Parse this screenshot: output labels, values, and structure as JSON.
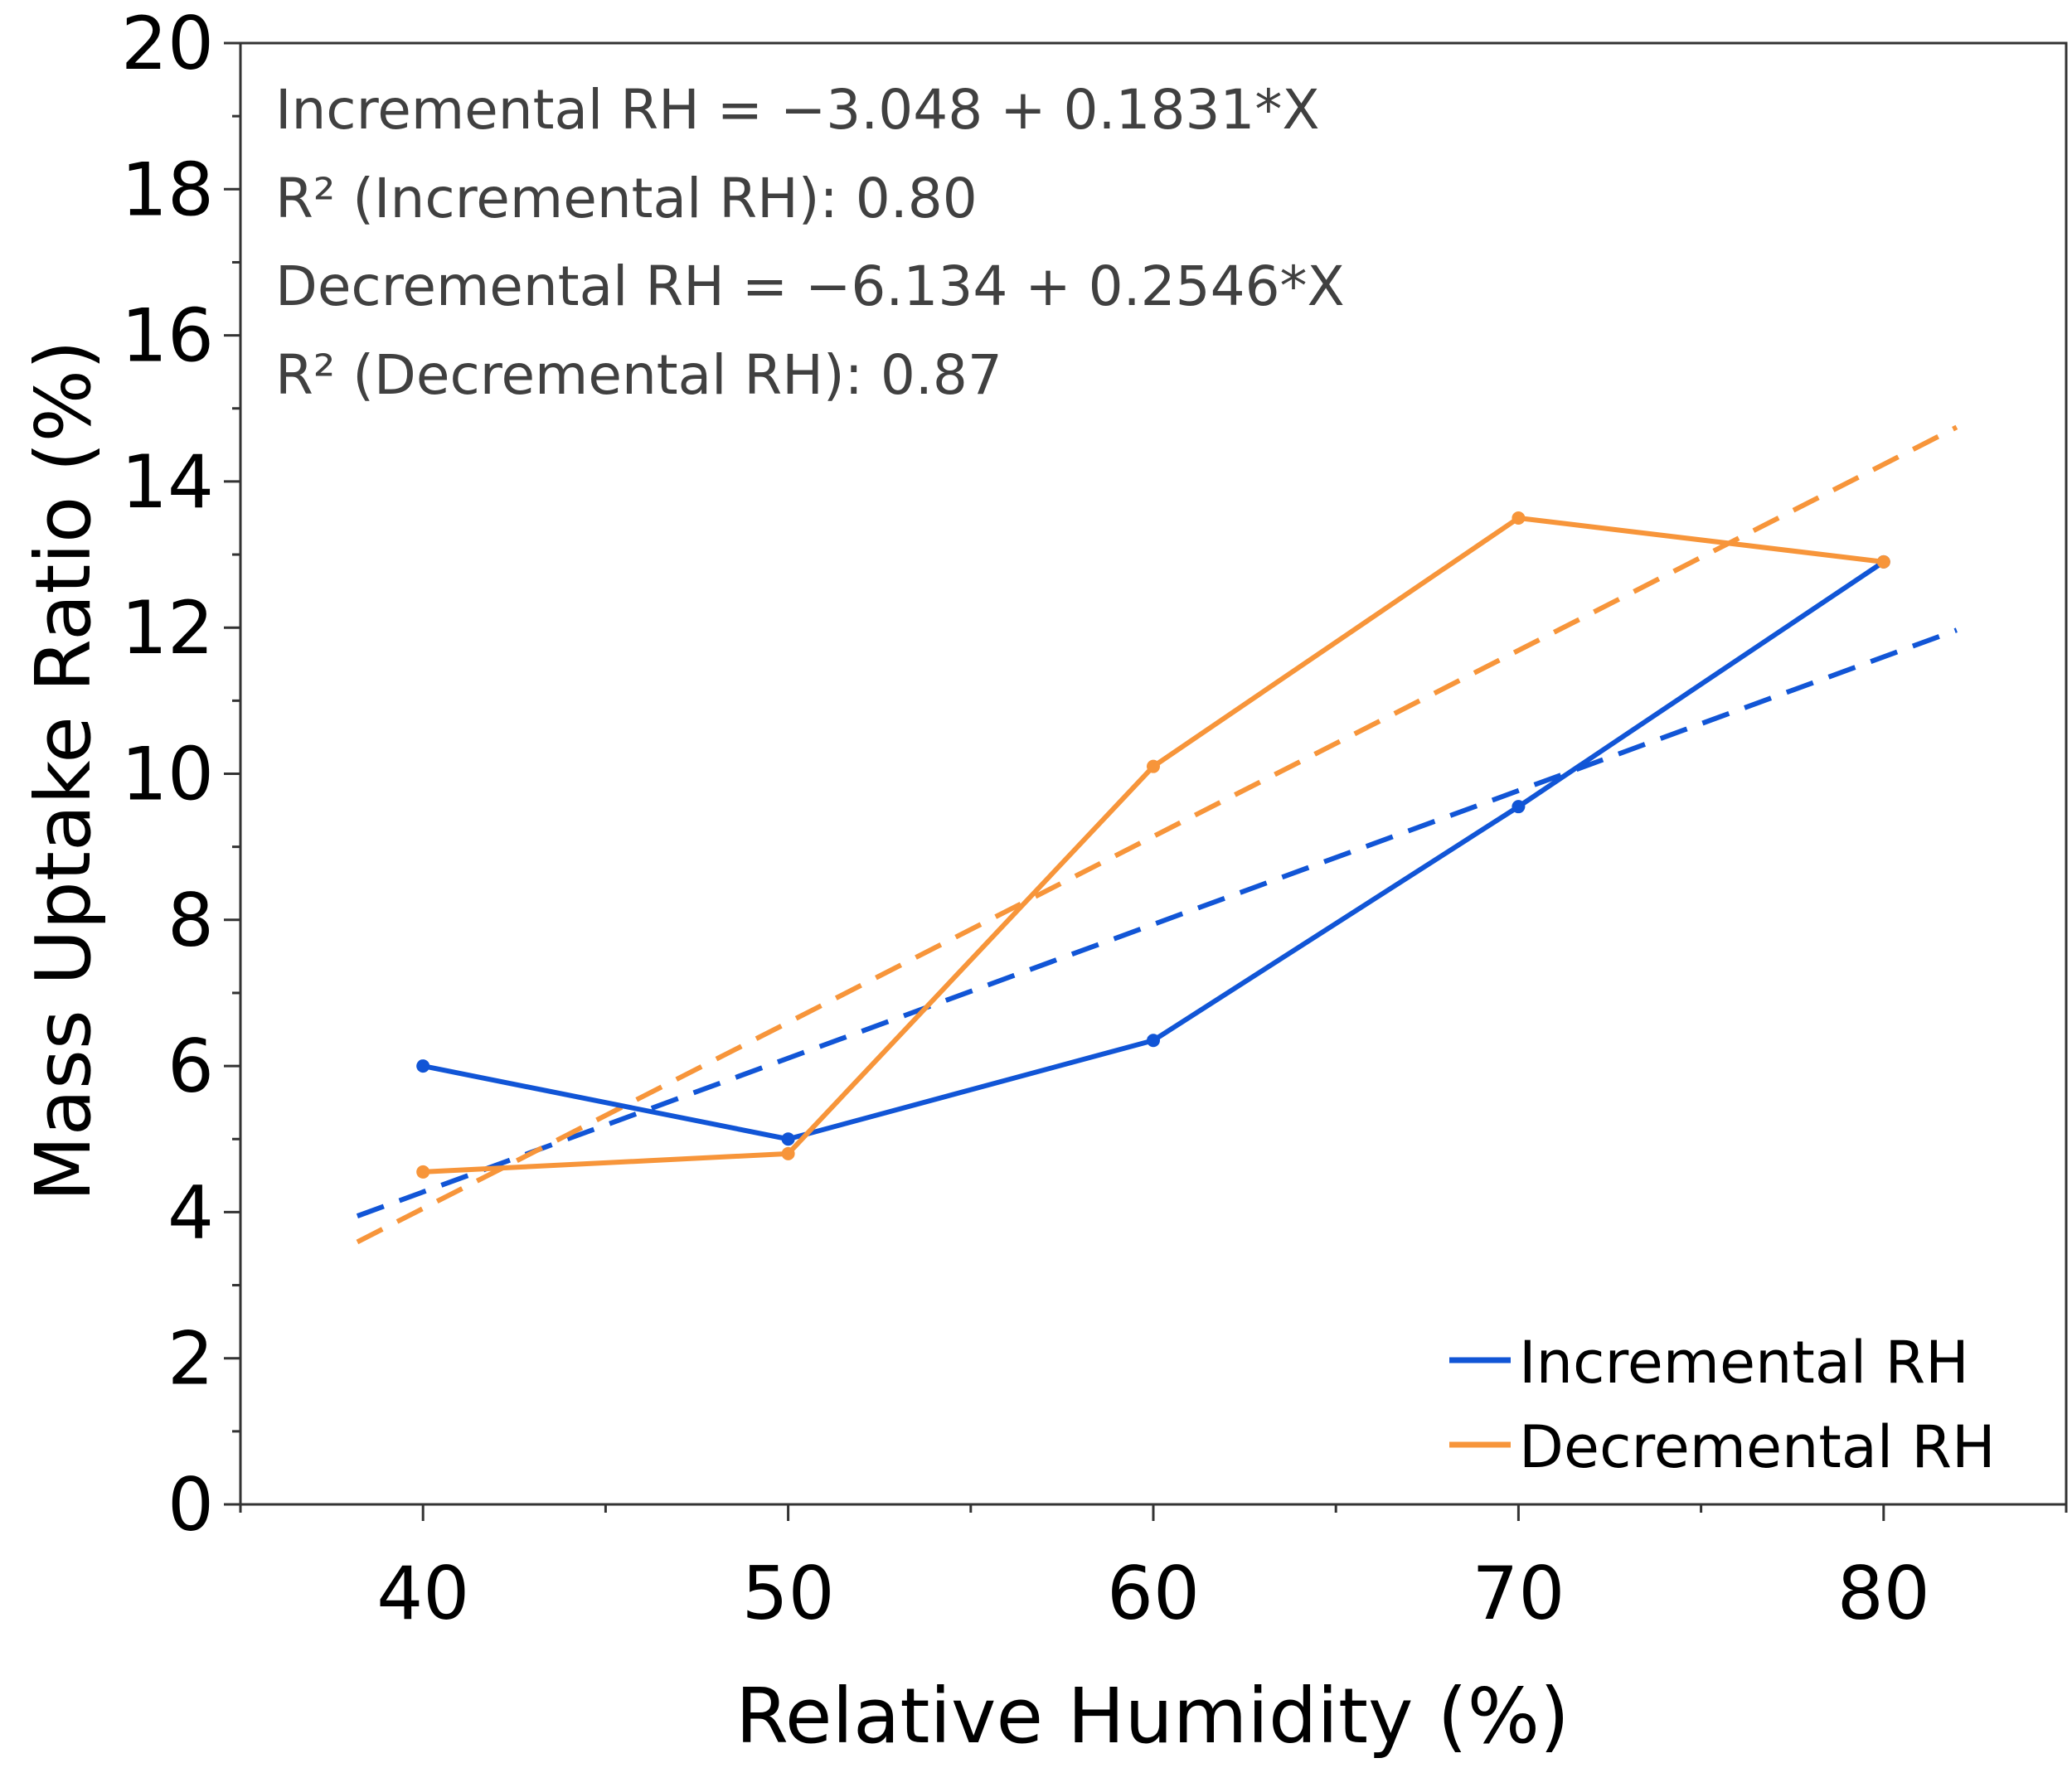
{
  "chart_data": {
    "type": "line",
    "xlabel": "Relative Humidity (%)",
    "ylabel": "Mass Uptake Ratio (%)",
    "xlim": [
      35,
      85
    ],
    "ylim": [
      0,
      20
    ],
    "x_ticks": [
      40,
      50,
      60,
      70,
      80
    ],
    "x_tick_labels": [
      "40",
      "50",
      "60",
      "70",
      "80"
    ],
    "y_ticks": [
      0,
      2,
      4,
      6,
      8,
      10,
      12,
      14,
      16,
      18,
      20
    ],
    "y_tick_labels": [
      "0",
      "2",
      "4",
      "6",
      "8",
      "10",
      "12",
      "14",
      "16",
      "18",
      "20"
    ],
    "grid": false,
    "legend_position": "bottom-right",
    "series": [
      {
        "name": "Incremental RH",
        "color": "#1155d6",
        "x": [
          40,
          50,
          60,
          70,
          80
        ],
        "y": [
          6.0,
          5.0,
          6.35,
          9.55,
          12.9
        ],
        "fit": {
          "intercept": -3.048,
          "slope": 0.1831,
          "x_range": [
            38.2,
            82.0
          ]
        }
      },
      {
        "name": "Decremental RH",
        "color": "#f7953a",
        "x": [
          40,
          50,
          60,
          70,
          80
        ],
        "y": [
          4.55,
          4.8,
          10.1,
          13.5,
          12.9
        ],
        "fit": {
          "intercept": -6.134,
          "slope": 0.2546,
          "x_range": [
            38.2,
            82.0
          ]
        }
      }
    ],
    "annotations": [
      "Incremental RH = −3.048 + 0.1831*X",
      "R² (Incremental RH): 0.80",
      "Decremental RH = −6.134 + 0.2546*X",
      "R² (Decremental RH): 0.87"
    ]
  }
}
